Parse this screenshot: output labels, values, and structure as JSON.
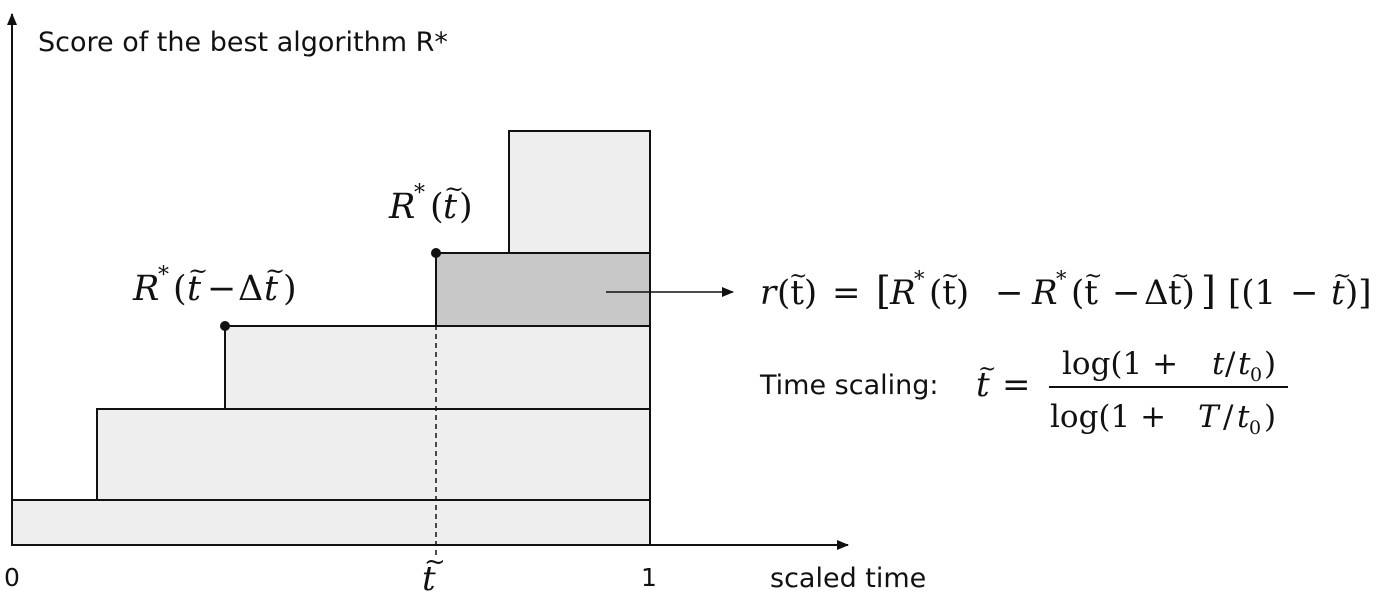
{
  "labels": {
    "y_axis": "Score of the best algorithm R*",
    "x_axis": "scaled time",
    "tick_zero": "0",
    "tick_one": "1",
    "tick_t": "t",
    "tick_t_accent": "~"
  },
  "annotations": {
    "r_star_t": {
      "R": "R",
      "star": "*",
      "open": "(",
      "t": "t",
      "accent": "~",
      "close": ")"
    },
    "r_star_t_minus": {
      "R": "R",
      "star": "*",
      "open": "(",
      "t": "t",
      "accent": "~",
      "minus": "−",
      "delta": "Δ",
      "t2": "t",
      "accent2": "~",
      "close": ")"
    }
  },
  "formula_reward": {
    "r": "r",
    "paren_t": "(t)",
    "accent": "~",
    "eq": "=",
    "lb1": "[",
    "R1": "R",
    "s1": "*",
    "p1": "(t)",
    "minus": "−",
    "R2": "R",
    "s2": "*",
    "p2a": "(t",
    "minus2": "−",
    "delta": "Δ",
    "p2b": "t)",
    "rb1": "]",
    "lb2": "[(1",
    "minus3": "−",
    "t3": "t",
    "rb2": ")]"
  },
  "formula_scaling": {
    "prefix": "Time scaling:",
    "t": "t",
    "accent": "~",
    "eq": "=",
    "num_log": "log(1 + ",
    "num_t": "t",
    "num_slash": "/",
    "num_t0": "t",
    "num_sub": "0",
    "num_close": ")",
    "den_log": "log(1 + ",
    "den_T": "T",
    "den_slash": "/",
    "den_t0": "t",
    "den_sub": "0",
    "den_close": ")"
  },
  "colors": {
    "light_fill": "#eeeeee",
    "highlight_fill": "#c8c8c8",
    "stroke": "#111111"
  }
}
